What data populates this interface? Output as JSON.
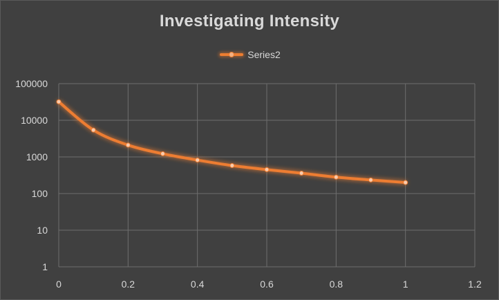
{
  "chart_data": {
    "type": "line",
    "title": "Investigating Intensity",
    "xlabel": "",
    "ylabel": "",
    "legend_position": "top",
    "grid": true,
    "y_scale": "log",
    "xlim": [
      0,
      1.2
    ],
    "ylim": [
      1,
      100000
    ],
    "x_ticks": [
      "0",
      "0.2",
      "0.4",
      "0.6",
      "0.8",
      "1",
      "1.2"
    ],
    "y_ticks": [
      "1",
      "10",
      "100",
      "1000",
      "10000",
      "100000"
    ],
    "x": [
      0,
      0.1,
      0.2,
      0.3,
      0.4,
      0.5,
      0.6,
      0.7,
      0.8,
      0.9,
      1.0
    ],
    "series": [
      {
        "name": "Series2",
        "color": "#ed7d31",
        "values": [
          32000,
          5400,
          2100,
          1220,
          820,
          580,
          450,
          360,
          280,
          235,
          200
        ]
      }
    ]
  }
}
